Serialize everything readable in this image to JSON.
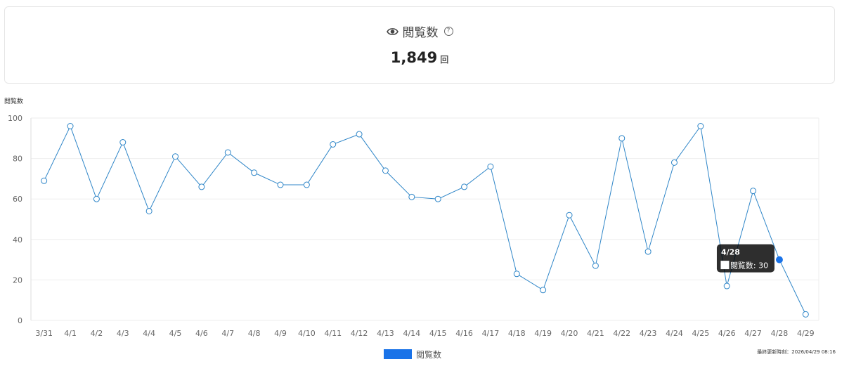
{
  "summary": {
    "title": "閲覧数",
    "value": "1,849",
    "unit": "回"
  },
  "footer": {
    "updated": "最終更新時刻：2026/04/29 08:16"
  },
  "colors": {
    "line": "#2f86c8",
    "legend": "#1a73e8",
    "active_point": "#1a73e8",
    "grid": "#eeeeee"
  },
  "chart_data": {
    "type": "line",
    "ylabel": "閲覧数",
    "xlabel": "",
    "ylim": [
      0,
      100
    ],
    "yticks": [
      0,
      20,
      40,
      60,
      80,
      100
    ],
    "grid": true,
    "legend_position": "bottom-center",
    "categories": [
      "3/31",
      "4/1",
      "4/2",
      "4/3",
      "4/4",
      "4/5",
      "4/6",
      "4/7",
      "4/8",
      "4/9",
      "4/10",
      "4/11",
      "4/12",
      "4/13",
      "4/14",
      "4/15",
      "4/16",
      "4/17",
      "4/18",
      "4/19",
      "4/20",
      "4/21",
      "4/22",
      "4/23",
      "4/24",
      "4/25",
      "4/26",
      "4/27",
      "4/28",
      "4/29"
    ],
    "series": [
      {
        "name": "閲覧数",
        "values": [
          69,
          96,
          60,
          88,
          54,
          81,
          66,
          83,
          73,
          67,
          67,
          87,
          92,
          74,
          61,
          60,
          66,
          76,
          23,
          15,
          52,
          27,
          90,
          34,
          78,
          96,
          17,
          64,
          30,
          3
        ]
      }
    ],
    "tooltip": {
      "category": "4/28",
      "label": "閲覧数: 30"
    }
  }
}
